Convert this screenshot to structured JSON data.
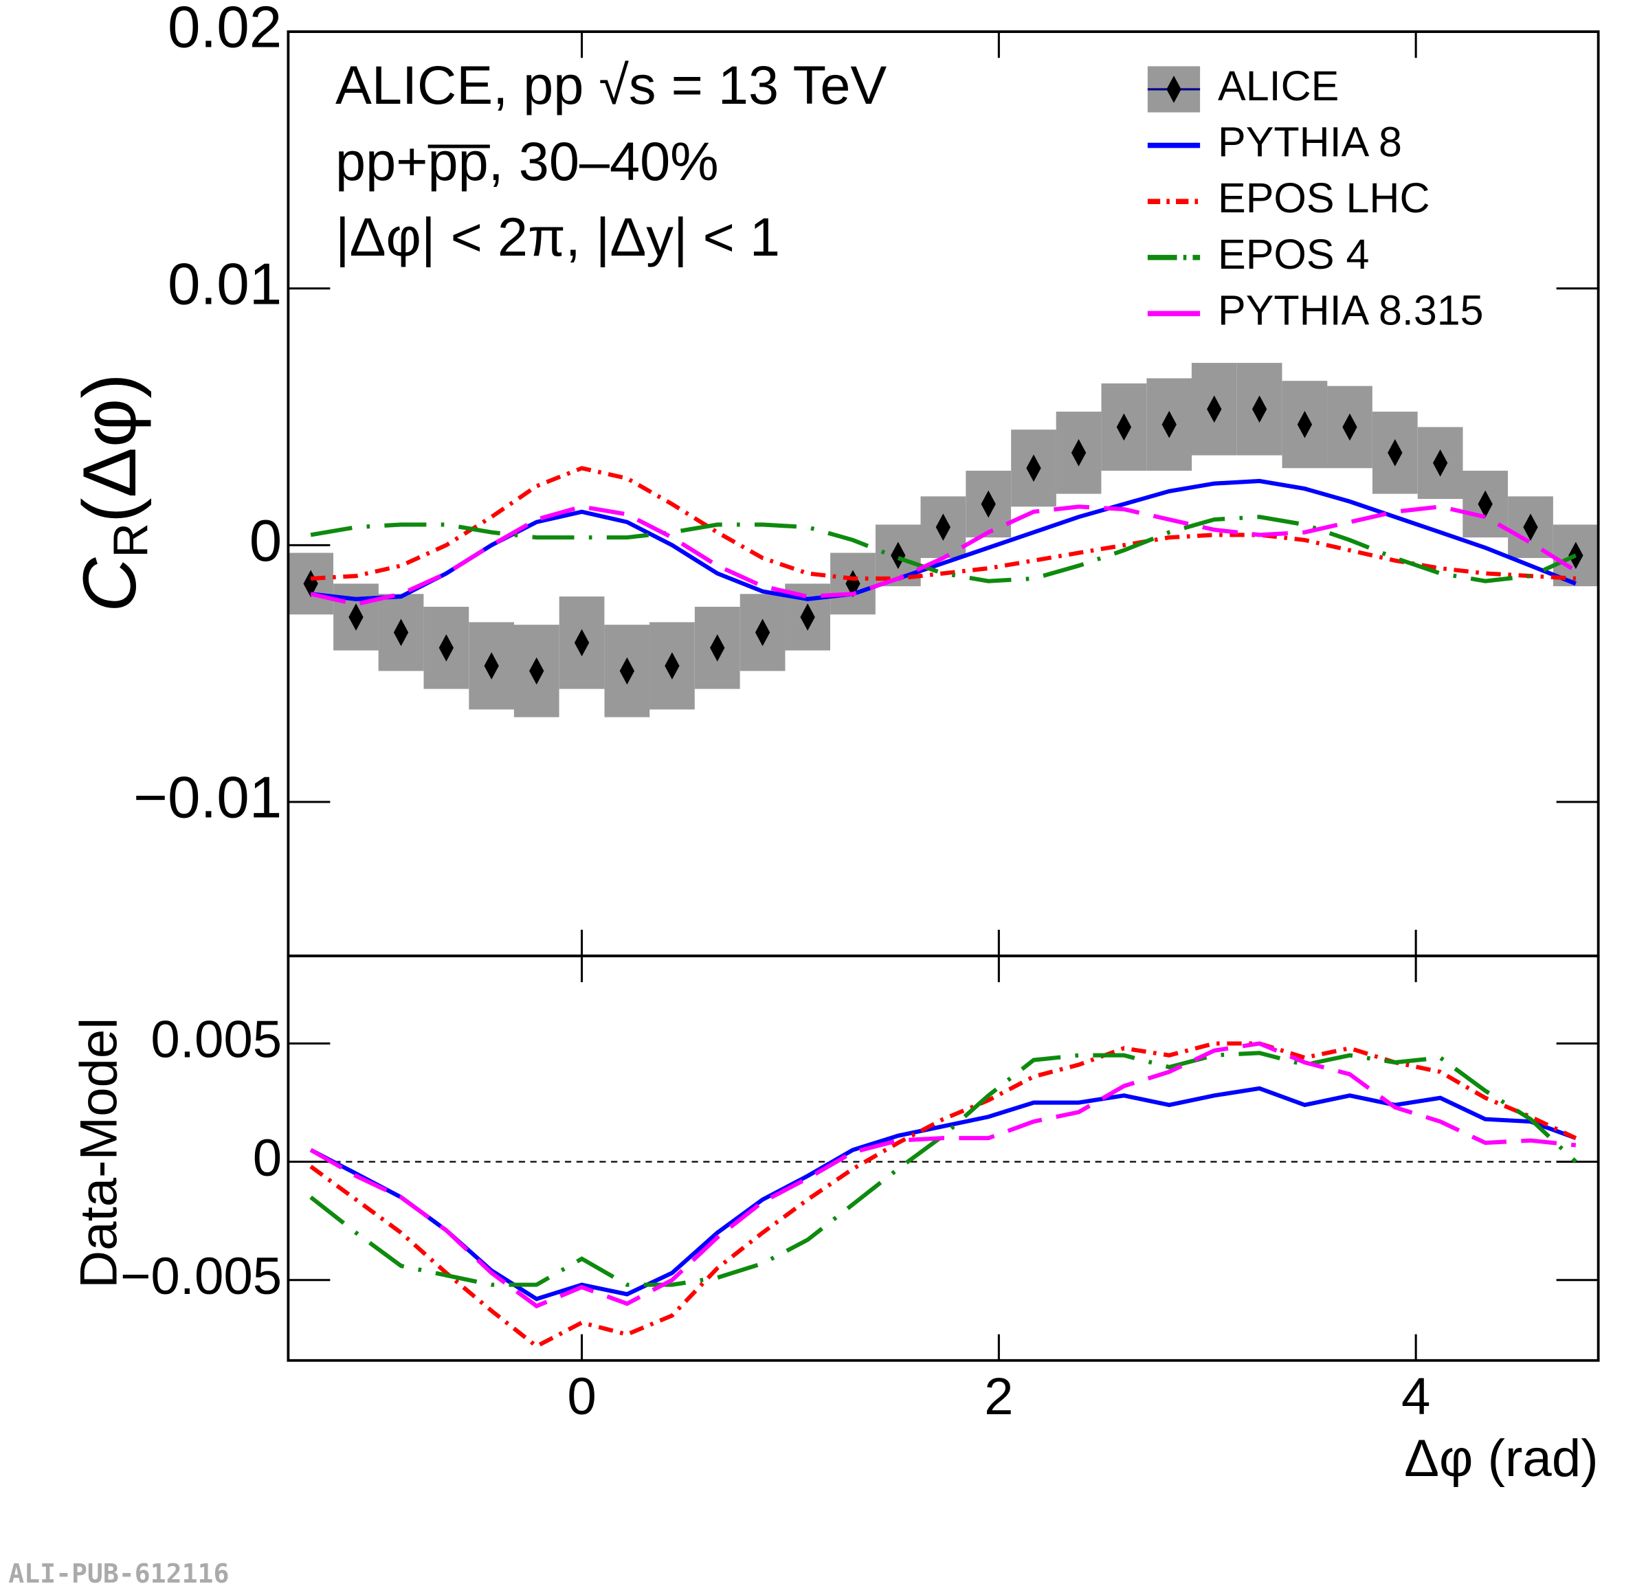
{
  "chart_data": [
    {
      "type": "line",
      "annotations": [
        "ALICE, pp √s = 13 TeV",
        "pp+p̅p̅, 30–40%",
        "|Δφ| < 2π, |Δy| < 1"
      ],
      "ylabel": "C",
      "ylabel_sub": "R",
      "ylabel_rest": "(Δφ)",
      "x": [
        -1.3,
        -1.083,
        -0.867,
        -0.65,
        -0.433,
        -0.217,
        0,
        0.217,
        0.433,
        0.65,
        0.867,
        1.083,
        1.3,
        1.517,
        1.733,
        1.95,
        2.167,
        2.383,
        2.6,
        2.817,
        3.033,
        3.25,
        3.467,
        3.683,
        3.9,
        4.117,
        4.333,
        4.55,
        4.767
      ],
      "xlim": [
        -1.408,
        4.875
      ],
      "ylim": [
        -0.016,
        0.02
      ],
      "yticks": [
        {
          "value": -0.01,
          "label": "−0.01"
        },
        0,
        0.01,
        0.02
      ],
      "legend": "upper right",
      "series": [
        {
          "name": "ALICE",
          "color": "#000000",
          "style": "marker",
          "error_color": "#999999",
          "values": [
            -0.0015,
            -0.0028,
            -0.0034,
            -0.004,
            -0.0047,
            -0.0049,
            -0.0038,
            -0.0049,
            -0.0047,
            -0.004,
            -0.0034,
            -0.0028,
            -0.0015,
            -0.0004,
            0.0007,
            0.0016,
            0.003,
            0.0036,
            0.0046,
            0.0047,
            0.0053,
            0.0053,
            0.0047,
            0.0046,
            0.0036,
            0.0032,
            0.0016,
            0.0007,
            -0.0004
          ],
          "errors": [
            0.0012,
            0.0013,
            0.0015,
            0.0016,
            0.0017,
            0.0018,
            0.0018,
            0.0018,
            0.0017,
            0.0016,
            0.0015,
            0.0013,
            0.0012,
            0.0012,
            0.0012,
            0.0013,
            0.0015,
            0.0016,
            0.0017,
            0.0018,
            0.0018,
            0.0018,
            0.0017,
            0.0016,
            0.0016,
            0.0014,
            0.0013,
            0.0012,
            0.0012
          ]
        },
        {
          "name": "PYTHIA 8",
          "color": "#0000ff",
          "style": "solid",
          "values": [
            -0.0019,
            -0.0021,
            -0.002,
            -0.0011,
            0.0,
            0.0009,
            0.0013,
            0.0009,
            0.0,
            -0.0011,
            -0.0018,
            -0.0021,
            -0.0019,
            -0.0013,
            -0.0007,
            -0.0001,
            0.0005,
            0.0011,
            0.0016,
            0.0021,
            0.0024,
            0.0025,
            0.0022,
            0.0017,
            0.0011,
            0.0005,
            -0.0001,
            -0.0008,
            -0.0015
          ]
        },
        {
          "name": "EPOS LHC",
          "color": "#ff0000",
          "style": "dash-dot",
          "values": [
            -0.0013,
            -0.0012,
            -0.0008,
            0.0,
            0.0011,
            0.0023,
            0.003,
            0.0026,
            0.0016,
            0.0005,
            -0.0005,
            -0.0011,
            -0.0013,
            -0.0013,
            -0.0011,
            -0.0009,
            -0.0006,
            -0.0003,
            0.0,
            0.0003,
            0.0004,
            0.0004,
            0.0002,
            -0.0002,
            -0.0006,
            -0.0009,
            -0.0011,
            -0.0012,
            -0.0013
          ]
        },
        {
          "name": "EPOS 4",
          "color": "#0e8a0e",
          "style": "long-dash-dot",
          "values": [
            0.0004,
            0.0007,
            0.0008,
            0.0008,
            0.0005,
            0.0003,
            0.0003,
            0.0003,
            0.0005,
            0.0008,
            0.0008,
            0.0007,
            0.0002,
            -0.0005,
            -0.0011,
            -0.0014,
            -0.0013,
            -0.0008,
            -0.0002,
            0.0005,
            0.001,
            0.0011,
            0.0008,
            0.0002,
            -0.0005,
            -0.0011,
            -0.0014,
            -0.0012,
            -0.0004
          ]
        },
        {
          "name": "PYTHIA 8.315",
          "color": "#ff00ff",
          "style": "dash",
          "values": [
            -0.0019,
            -0.0023,
            -0.0019,
            -0.0011,
            0.0,
            0.001,
            0.0015,
            0.0012,
            0.0003,
            -0.0008,
            -0.0016,
            -0.002,
            -0.0019,
            -0.0013,
            -0.0005,
            0.0005,
            0.0013,
            0.0015,
            0.0014,
            0.001,
            0.0006,
            0.0004,
            0.0005,
            0.0009,
            0.0013,
            0.0015,
            0.0011,
            0.0001,
            -0.001
          ]
        }
      ]
    },
    {
      "type": "line",
      "ylabel": "Data-Model",
      "xlabel": "Δφ (rad)",
      "x": [
        -1.3,
        -1.083,
        -0.867,
        -0.65,
        -0.433,
        -0.217,
        0,
        0.217,
        0.433,
        0.65,
        0.867,
        1.083,
        1.3,
        1.517,
        1.733,
        1.95,
        2.167,
        2.383,
        2.6,
        2.817,
        3.033,
        3.25,
        3.467,
        3.683,
        3.9,
        4.117,
        4.333,
        4.55,
        4.767
      ],
      "xlim": [
        -1.408,
        4.875
      ],
      "xticks": [
        0,
        2,
        4
      ],
      "ylim": [
        -0.0084,
        0.0087
      ],
      "yticks": [
        {
          "value": -0.005,
          "label": "−0.005"
        },
        0,
        0.005
      ],
      "zero_line": true,
      "series": [
        {
          "name": "PYTHIA 8",
          "color": "#0000ff",
          "style": "solid",
          "values": [
            0.0005,
            -0.0005,
            -0.0015,
            -0.0029,
            -0.0046,
            -0.0058,
            -0.0052,
            -0.0056,
            -0.0047,
            -0.003,
            -0.0016,
            -0.0006,
            0.0005,
            0.0011,
            0.0015,
            0.0019,
            0.0025,
            0.0025,
            0.0028,
            0.0024,
            0.0028,
            0.0031,
            0.0024,
            0.0028,
            0.0024,
            0.0027,
            0.0018,
            0.0017,
            0.001
          ]
        },
        {
          "name": "EPOS LHC",
          "color": "#ff0000",
          "style": "dash-dot",
          "values": [
            -0.0002,
            -0.0016,
            -0.003,
            -0.0047,
            -0.0063,
            -0.0078,
            -0.0068,
            -0.0073,
            -0.0065,
            -0.0045,
            -0.003,
            -0.0016,
            -0.0003,
            0.0008,
            0.0018,
            0.0026,
            0.0036,
            0.0041,
            0.0048,
            0.0045,
            0.005,
            0.005,
            0.0044,
            0.0048,
            0.0042,
            0.0038,
            0.0027,
            0.0019,
            0.001
          ]
        },
        {
          "name": "EPOS 4",
          "color": "#0e8a0e",
          "style": "long-dash-dot",
          "values": [
            -0.0015,
            -0.003,
            -0.0044,
            -0.0048,
            -0.0052,
            -0.0052,
            -0.0041,
            -0.0052,
            -0.0052,
            -0.0049,
            -0.0043,
            -0.0033,
            -0.0018,
            -0.0003,
            0.0011,
            0.0028,
            0.0043,
            0.0045,
            0.0045,
            0.004,
            0.0045,
            0.0046,
            0.0041,
            0.0045,
            0.0042,
            0.0044,
            0.003,
            0.0018,
            0.0
          ]
        },
        {
          "name": "PYTHIA 8.315",
          "color": "#ff00ff",
          "style": "dash",
          "values": [
            0.0005,
            -0.0006,
            -0.0015,
            -0.0029,
            -0.0047,
            -0.0061,
            -0.0053,
            -0.006,
            -0.005,
            -0.0032,
            -0.0017,
            -0.0007,
            0.0004,
            0.0009,
            0.001,
            0.001,
            0.0017,
            0.0021,
            0.0032,
            0.0038,
            0.0047,
            0.005,
            0.0042,
            0.0037,
            0.0023,
            0.0017,
            0.0008,
            0.0009,
            0.0007
          ]
        }
      ]
    }
  ],
  "footer": "ALI-PUB-612116"
}
